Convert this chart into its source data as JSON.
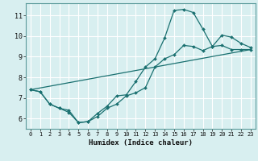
{
  "title": "",
  "xlabel": "Humidex (Indice chaleur)",
  "bg_color": "#d8eff0",
  "grid_color": "#ffffff",
  "line_color": "#1a7070",
  "xlim": [
    -0.5,
    23.5
  ],
  "ylim": [
    5.5,
    11.6
  ],
  "xticks": [
    0,
    1,
    2,
    3,
    4,
    5,
    6,
    7,
    8,
    9,
    10,
    11,
    12,
    13,
    14,
    15,
    16,
    17,
    18,
    19,
    20,
    21,
    22,
    23
  ],
  "yticks": [
    6,
    7,
    8,
    9,
    10,
    11
  ],
  "line1_x": [
    0,
    1,
    2,
    3,
    4,
    5,
    6,
    7,
    8,
    9,
    10,
    11,
    12,
    13,
    14,
    15,
    16,
    17,
    18,
    19,
    20,
    21,
    22,
    23
  ],
  "line1_y": [
    7.4,
    7.3,
    6.7,
    6.5,
    6.3,
    5.8,
    5.85,
    6.1,
    6.5,
    6.7,
    7.1,
    7.25,
    7.5,
    8.5,
    8.9,
    9.1,
    9.55,
    9.5,
    9.3,
    9.5,
    9.55,
    9.35,
    9.35,
    9.35
  ],
  "line2_x": [
    0,
    1,
    2,
    3,
    4,
    5,
    6,
    7,
    8,
    9,
    10,
    11,
    12,
    13,
    14,
    15,
    16,
    17,
    18,
    19,
    20,
    21,
    22,
    23
  ],
  "line2_y": [
    7.4,
    7.3,
    6.7,
    6.5,
    6.4,
    5.8,
    5.85,
    6.25,
    6.6,
    7.1,
    7.15,
    7.8,
    8.5,
    8.9,
    9.9,
    11.25,
    11.3,
    11.15,
    10.35,
    9.5,
    10.05,
    9.95,
    9.65,
    9.45
  ],
  "line3_x": [
    0,
    23
  ],
  "line3_y": [
    7.4,
    9.35
  ]
}
